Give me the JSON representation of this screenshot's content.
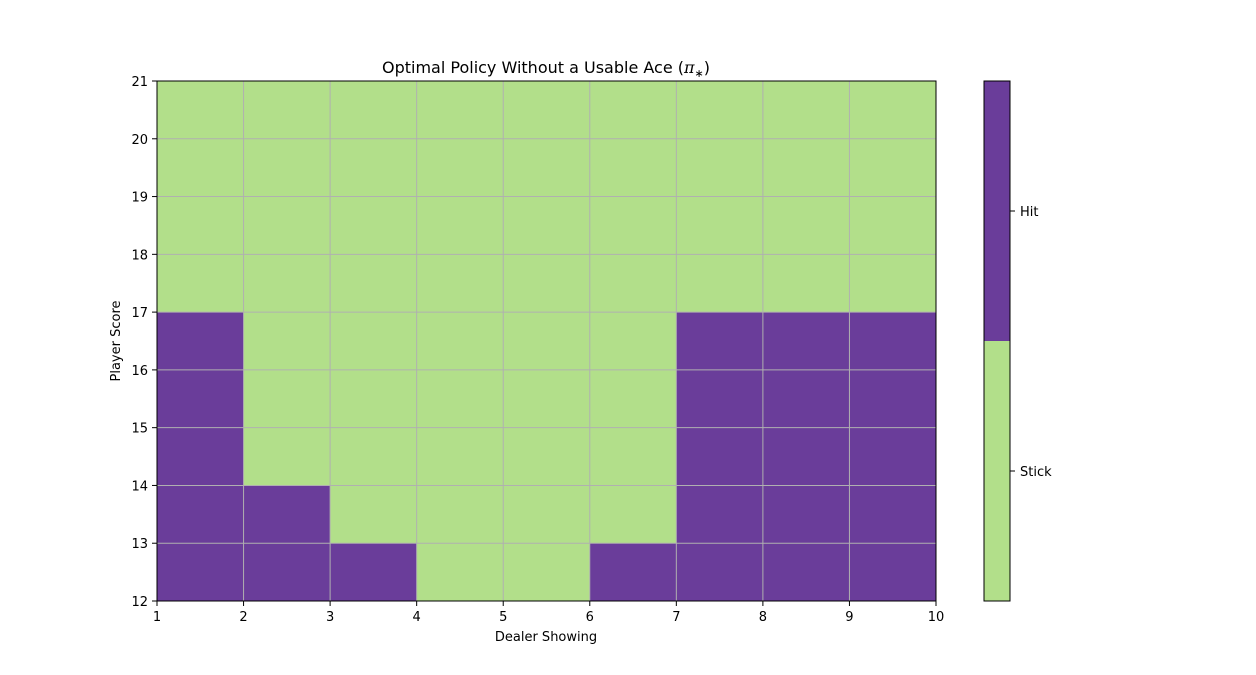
{
  "chart_data": {
    "type": "heatmap",
    "title_prefix": "Optimal Policy Without a Usable Ace (",
    "title_symbol": "π",
    "title_subscript": "∗",
    "title_suffix": ")",
    "xlabel": "Dealer Showing",
    "ylabel": "Player Score",
    "xlim": [
      1,
      10
    ],
    "ylim": [
      12,
      21
    ],
    "x_ticks": [
      "1",
      "2",
      "3",
      "4",
      "5",
      "6",
      "7",
      "8",
      "9",
      "10"
    ],
    "y_ticks": [
      "12",
      "13",
      "14",
      "15",
      "16",
      "17",
      "18",
      "19",
      "20",
      "21"
    ],
    "grid": true,
    "cell_note": "rows from player score 12 (bottom) to 20 (top); columns from dealer 1 to 9; 1 = Hit, 0 = Stick",
    "cells": [
      [
        1,
        1,
        1,
        0,
        0,
        1,
        1,
        1,
        1
      ],
      [
        1,
        1,
        0,
        0,
        0,
        0,
        1,
        1,
        1
      ],
      [
        1,
        0,
        0,
        0,
        0,
        0,
        1,
        1,
        1
      ],
      [
        1,
        0,
        0,
        0,
        0,
        0,
        1,
        1,
        1
      ],
      [
        1,
        0,
        0,
        0,
        0,
        0,
        1,
        1,
        1
      ],
      [
        0,
        0,
        0,
        0,
        0,
        0,
        0,
        0,
        0
      ],
      [
        0,
        0,
        0,
        0,
        0,
        0,
        0,
        0,
        0
      ],
      [
        0,
        0,
        0,
        0,
        0,
        0,
        0,
        0,
        0
      ],
      [
        0,
        0,
        0,
        0,
        0,
        0,
        0,
        0,
        0
      ]
    ],
    "colorbar": {
      "labels": [
        "Stick",
        "Hit"
      ],
      "values": [
        0,
        1
      ],
      "colors": [
        "#b2df8a",
        "#6a3d9a"
      ],
      "placement": "right"
    }
  }
}
